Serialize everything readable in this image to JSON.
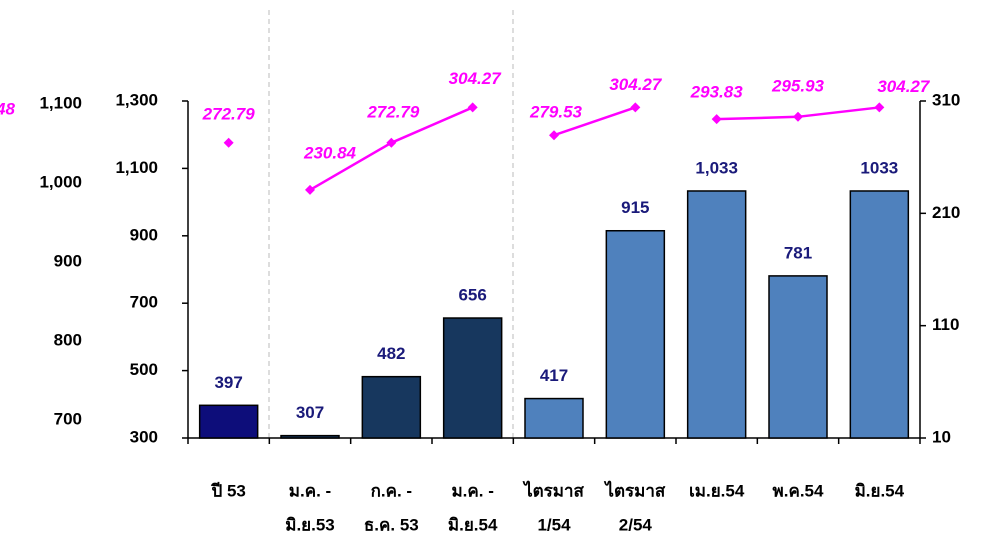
{
  "chart_data": {
    "type": "bar",
    "categories": [
      [
        "ปี 53"
      ],
      [
        "ม.ค. -",
        "มิ.ย.53"
      ],
      [
        "ก.ค. -",
        "ธ.ค. 53"
      ],
      [
        "ม.ค. -",
        "มิ.ย.54"
      ],
      [
        "ไตรมาส",
        "1/54"
      ],
      [
        "ไตรมาส",
        "2/54"
      ],
      [
        "เม.ย.54"
      ],
      [
        "พ.ค.54"
      ],
      [
        "มิ.ย.54"
      ]
    ],
    "values": [
      397,
      307,
      482,
      656,
      417,
      915,
      1033,
      781,
      1033
    ],
    "value_labels": [
      "397",
      "307",
      "482",
      "656",
      "417",
      "915",
      "1,033",
      "781",
      "1033"
    ],
    "colors": [
      "#0d0d7a",
      "#17375e",
      "#17375e",
      "#17375e",
      "#4f81bd",
      "#4f81bd",
      "#4f81bd",
      "#4f81bd",
      "#4f81bd"
    ],
    "line_color": "#ff00ff",
    "line_series": [
      {
        "values": [
          272.79,
          null,
          null,
          null,
          null,
          null,
          null,
          null,
          null
        ],
        "axis": "y2"
      },
      {
        "values": [
          null,
          230.84,
          272.79,
          304.27,
          null,
          null,
          null,
          null,
          null
        ],
        "axis": "y2"
      },
      {
        "values": [
          null,
          null,
          null,
          null,
          279.53,
          304.27,
          null,
          null,
          null
        ],
        "axis": "y2"
      },
      {
        "values": [
          null,
          null,
          null,
          null,
          null,
          null,
          293.83,
          295.93,
          304.27
        ],
        "axis": "y2"
      }
    ],
    "ylim": [
      300,
      1300
    ],
    "yticks": [
      300,
      500,
      700,
      900,
      {
        "value": 1100,
        "label": "1,100"
      },
      {
        "value": 1300,
        "label": "1,300"
      }
    ],
    "y2lim": [
      10,
      310
    ],
    "y2ticks": [
      10,
      110,
      210,
      310
    ],
    "y3lim": [
      677,
      1104
    ],
    "y3ticks": [
      700,
      800,
      900,
      {
        "value": 1000,
        "label": "1,000"
      },
      {
        "value": 1100,
        "label": "1,100"
      }
    ],
    "annotations": [
      "48"
    ]
  }
}
